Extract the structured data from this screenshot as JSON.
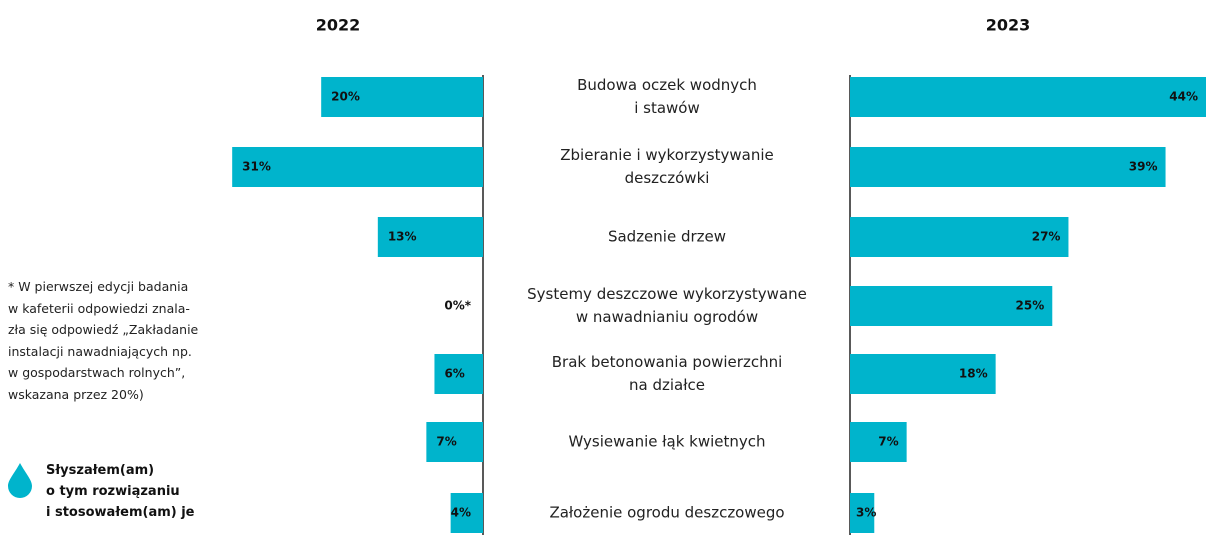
{
  "chart_data": {
    "type": "butterfly-bar",
    "categories": [
      "Budowa oczek wodnych\ni stawów",
      "Zbieranie i wykorzystywanie\ndeszczówki",
      "Sadzenie drzew",
      "Systemy deszczowe wykorzystywane\nw nawadnianiu ogrodów",
      "Brak betonowania powierzchni\nna działce",
      "Wysiewanie łąk kwietnych",
      "Założenie ogrodu deszczowego"
    ],
    "series": [
      {
        "name": "2022",
        "color": "#00b4cc",
        "values": [
          20,
          31,
          13,
          0,
          6,
          7,
          4
        ],
        "value_labels": [
          "20%",
          "31%",
          "13%",
          "0%*",
          "6%",
          "7%",
          "4%"
        ]
      },
      {
        "name": "2023",
        "color": "#00b4cc",
        "values": [
          44,
          39,
          27,
          25,
          18,
          7,
          3
        ],
        "value_labels": [
          "44%",
          "39%",
          "27%",
          "25%",
          "18%",
          "7%",
          "3%"
        ]
      }
    ],
    "xlim": [
      0,
      44
    ],
    "note": "* W pierwszej edycji badania\nw kafeterii odpowiedzi znala-\nzła się odpowiedź „Zakładanie\ninstalacji nawadniających np.\nw gospodarstwach rolnych”,\nwskazana przez 20%)",
    "legend_label": "Słyszałem(am)\no tym rozwiązaniu\ni stosowałem(am) je"
  }
}
